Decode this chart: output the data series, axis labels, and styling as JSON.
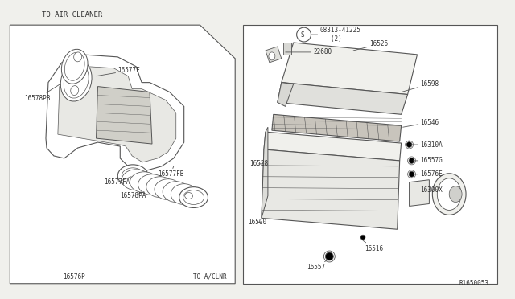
{
  "bg_color": "#f0f0ec",
  "box_color": "#ffffff",
  "line_color": "#555555",
  "text_color": "#333333",
  "ref_code": "R1650053",
  "left_label_top": "TO AIR CLEANER",
  "left_label_bl": "16576P",
  "left_label_br": "TO A/CLNR",
  "font_size": 5.5,
  "font_title": 6.5
}
